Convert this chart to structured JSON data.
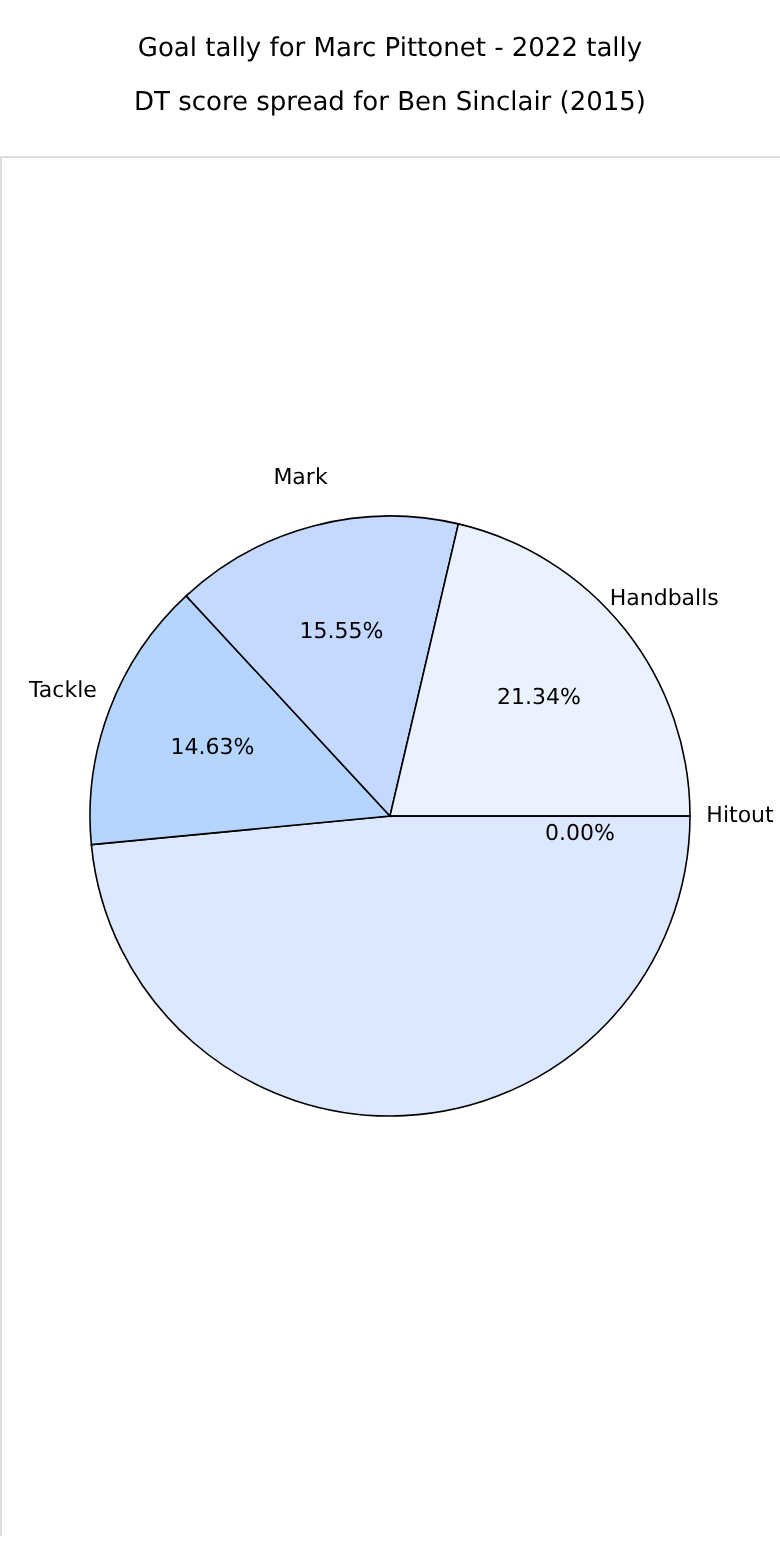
{
  "chart_data": {
    "type": "pie",
    "title": "Goal tally for Marc Pittonet - 2022 tally",
    "subtitle": "DT score spread for Ben Sinclair (2015)",
    "categories": [
      null,
      "Tackle",
      "Mark",
      "Handballs",
      "Hitout"
    ],
    "values": [
      48.48,
      14.63,
      15.55,
      21.34,
      0.0
    ],
    "colors": [
      "#dbe8ff",
      "#b5d5ff",
      "#c5d8ff",
      "#eaf1ff",
      "#d6e4ff"
    ],
    "value_labels": [
      null,
      "14.63%",
      "15.55%",
      "21.34%",
      "0.00%"
    ]
  }
}
